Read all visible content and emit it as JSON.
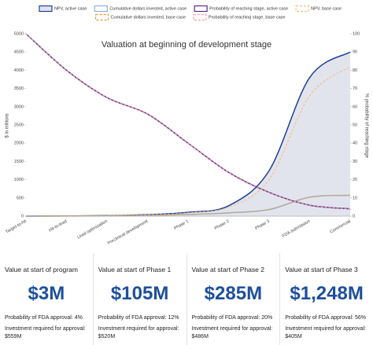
{
  "chart_data": {
    "type": "line",
    "title": "Valuation at beginning of development stage",
    "y_label": "$ in millions",
    "y2_label": "% probability of reaching stage",
    "categories": [
      "Target-to-hit",
      "Hit-to-lead",
      "Lead optimization",
      "Preclinical development",
      "Phase 1",
      "Phase 2",
      "Phase 3",
      "FDA submission",
      "Commercial"
    ],
    "ylim": [
      0,
      5000
    ],
    "yticks": [
      0,
      500,
      1000,
      1500,
      2000,
      2500,
      3000,
      3500,
      4000,
      4500,
      5000
    ],
    "y2lim": [
      0,
      100
    ],
    "y2ticks": [
      0,
      10,
      20,
      30,
      40,
      50,
      60,
      70,
      80,
      90,
      100
    ],
    "grid": false,
    "series": [
      {
        "name": "NPV, active case",
        "color": "#1d3f99",
        "fill": true,
        "dash": false,
        "values": [
          0,
          5,
          15,
          40,
          105,
          285,
          1248,
          3800,
          4500
        ]
      },
      {
        "name": "Cumulative dollars invested, active case",
        "color": "#8faee0",
        "fill": false,
        "dash": false,
        "values": [
          0,
          3,
          8,
          20,
          45,
          90,
          180,
          520,
          570
        ]
      },
      {
        "name": "Probability of reaching stage, active case",
        "color": "#5b2a86",
        "fill": false,
        "dash": false,
        "axis": "y2",
        "values": [
          100,
          80,
          65,
          56,
          40,
          24,
          13,
          6,
          4
        ]
      },
      {
        "name": "NPV, base case",
        "color": "#f5b971",
        "fill": false,
        "dash": true,
        "values": [
          0,
          4,
          12,
          35,
          90,
          250,
          1000,
          3300,
          4100
        ]
      },
      {
        "name": "Cumulative dollars invested, base case",
        "color": "#e0a030",
        "fill": false,
        "dash": true,
        "values": [
          0,
          3,
          8,
          20,
          45,
          90,
          180,
          520,
          570
        ]
      },
      {
        "name": "Probability of reaching stage, base case",
        "color": "#f0a0a8",
        "fill": false,
        "dash": true,
        "axis": "y2",
        "values": [
          100,
          80,
          65,
          56,
          40,
          24,
          13,
          6,
          4
        ]
      }
    ]
  },
  "cards": [
    {
      "label": "Value at start of program",
      "value": "$3M",
      "probability": "Probability of FDA approval: 4%",
      "investment": "Investment required for approval: $559M"
    },
    {
      "label": "Value at start of Phase 1",
      "value": "$105M",
      "probability": "Probability of FDA approval: 12%",
      "investment": "Investment required for approval: $520M"
    },
    {
      "label": "Value at start of Phase 2",
      "value": "$285M",
      "probability": "Probability of FDA approval: 20%",
      "investment": "Investment required for approval: $486M"
    },
    {
      "label": "Value at start of Phase 3",
      "value": "$1,248M",
      "probability": "Probability of FDA approval: 56%",
      "investment": "Investment required for approval: $405M"
    }
  ]
}
